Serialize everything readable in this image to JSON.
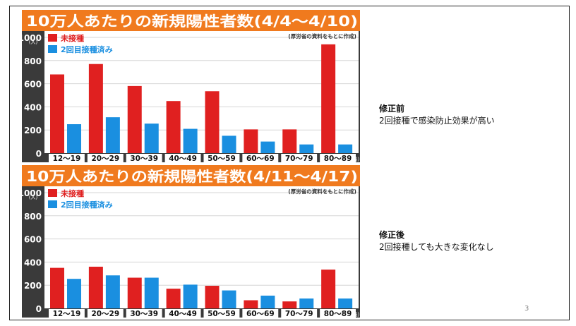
{
  "slide": {
    "page_number": "3",
    "notes": [
      {
        "heading": "修正前",
        "text": "2回接種で感染防止効果が高い"
      },
      {
        "heading": "修正後",
        "text": "2回接種しても大きな変化なし"
      }
    ]
  },
  "colors": {
    "banner": "#f07a1e",
    "plot_bg": "#ffffff",
    "frame": "#3a3a3a",
    "unvaccinated": "#e02020",
    "vaccinated": "#1a8fe0"
  },
  "chart_data": [
    {
      "type": "bar",
      "title": "10万人あたりの新規陽性者数(4/4〜4/10)",
      "source": "(厚労省の資料をもとに作成)",
      "ylabel": "(人)",
      "xunit": "(歳)",
      "ylim": [
        0,
        1000
      ],
      "yticks": [
        "0",
        "200",
        "400",
        "600",
        "800",
        "1000"
      ],
      "categories": [
        "12〜19",
        "20〜29",
        "30〜39",
        "40〜49",
        "50〜59",
        "60〜69",
        "70〜79",
        "80〜89"
      ],
      "series": [
        {
          "name": "未接種",
          "values": [
            680,
            770,
            580,
            450,
            535,
            205,
            205,
            940
          ]
        },
        {
          "name": "2回目接種済み",
          "values": [
            250,
            310,
            255,
            210,
            150,
            100,
            75,
            75
          ]
        }
      ]
    },
    {
      "type": "bar",
      "title": "10万人あたりの新規陽性者数(4/11〜4/17)",
      "source": "(厚労省の資料をもとに作成)",
      "ylabel": "(人)",
      "xunit": "(歳)",
      "ylim": [
        0,
        1000
      ],
      "yticks": [
        "0",
        "200",
        "400",
        "600",
        "800",
        "1000"
      ],
      "categories": [
        "12〜19",
        "20〜29",
        "30〜39",
        "40〜49",
        "50〜59",
        "60〜69",
        "70〜79",
        "80〜89"
      ],
      "series": [
        {
          "name": "未接種",
          "values": [
            350,
            360,
            265,
            170,
            195,
            70,
            60,
            335
          ]
        },
        {
          "name": "2回目接種済み",
          "values": [
            255,
            285,
            265,
            205,
            155,
            110,
            85,
            85
          ]
        }
      ]
    }
  ]
}
